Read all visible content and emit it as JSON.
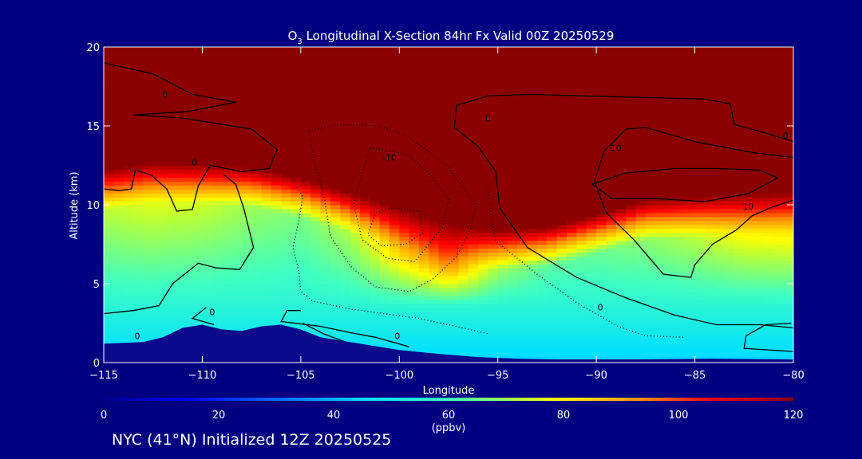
{
  "chart_data": {
    "type": "heatmap",
    "title_prefix": "O",
    "title_sub": "3",
    "title_rest": " Longitudinal X-Section 84hr  Fx Valid 00Z 20250529",
    "xlabel": "Longitude",
    "ylabel": "Altitude (km)",
    "xlim": [
      -115,
      -80
    ],
    "ylim": [
      0,
      20
    ],
    "xticks": [
      -115,
      -110,
      -105,
      -100,
      -95,
      -90,
      -85,
      -80
    ],
    "xtick_labels": [
      "−115",
      "−110",
      "−105",
      "−100",
      "−95",
      "−90",
      "−85",
      "−80"
    ],
    "yticks": [
      0,
      5,
      10,
      15,
      20
    ],
    "ytick_labels": [
      "0",
      "5",
      "10",
      "15",
      "20"
    ],
    "colorbar": {
      "min": 0,
      "max": 120,
      "ticks": [
        0,
        20,
        40,
        60,
        80,
        100,
        120
      ],
      "tick_labels": [
        "0",
        "20",
        "40",
        "60",
        "80",
        "100",
        "120"
      ],
      "unit": "(ppbv)"
    },
    "contour_labels": [
      {
        "text": "0",
        "lon": -111.9,
        "alt": 16.8
      },
      {
        "text": "0",
        "lon": -110.4,
        "alt": 12.5
      },
      {
        "text": "0",
        "lon": -95.5,
        "alt": 15.3
      },
      {
        "text": "0",
        "lon": -80.4,
        "alt": 14.2
      },
      {
        "text": "-10",
        "lon": -100.5,
        "alt": 12.8
      },
      {
        "text": "10",
        "lon": -89.0,
        "alt": 13.4
      },
      {
        "text": "10",
        "lon": -82.3,
        "alt": 9.7
      },
      {
        "text": "0",
        "lon": -109.5,
        "alt": 3.0
      },
      {
        "text": "0",
        "lon": -113.3,
        "alt": 1.5
      },
      {
        "text": "0",
        "lon": -89.8,
        "alt": 3.3
      },
      {
        "text": "0",
        "lon": -100.1,
        "alt": 1.5
      }
    ],
    "cross_section": [
      {
        "lon": -115,
        "tropopause_km": 11.7,
        "mid_ppbv": 73
      },
      {
        "lon": -112.5,
        "tropopause_km": 12.2,
        "mid_ppbv": 77
      },
      {
        "lon": -110,
        "tropopause_km": 12.1,
        "mid_ppbv": 75
      },
      {
        "lon": -107.5,
        "tropopause_km": 11.9,
        "mid_ppbv": 70
      },
      {
        "lon": -105,
        "tropopause_km": 11.2,
        "mid_ppbv": 66
      },
      {
        "lon": -102.5,
        "tropopause_km": 10.3,
        "mid_ppbv": 72
      },
      {
        "lon": -100,
        "tropopause_km": 9.3,
        "mid_ppbv": 88
      },
      {
        "lon": -97.5,
        "tropopause_km": 8.3,
        "mid_ppbv": 96
      },
      {
        "lon": -95,
        "tropopause_km": 7.9,
        "mid_ppbv": 70
      },
      {
        "lon": -92.5,
        "tropopause_km": 8.1,
        "mid_ppbv": 63
      },
      {
        "lon": -90,
        "tropopause_km": 8.9,
        "mid_ppbv": 64
      },
      {
        "lon": -87.5,
        "tropopause_km": 9.8,
        "mid_ppbv": 68
      },
      {
        "lon": -85,
        "tropopause_km": 10.0,
        "mid_ppbv": 73
      },
      {
        "lon": -82.5,
        "tropopause_km": 10.2,
        "mid_ppbv": 80
      },
      {
        "lon": -80,
        "tropopause_km": 10.3,
        "mid_ppbv": 82
      }
    ],
    "terrain": [
      {
        "lon": -115,
        "alt": 1.2
      },
      {
        "lon": -113,
        "alt": 1.3
      },
      {
        "lon": -112,
        "alt": 1.6
      },
      {
        "lon": -111,
        "alt": 2.2
      },
      {
        "lon": -110,
        "alt": 2.4
      },
      {
        "lon": -109,
        "alt": 2.1
      },
      {
        "lon": -108,
        "alt": 2.0
      },
      {
        "lon": -107,
        "alt": 2.3
      },
      {
        "lon": -106,
        "alt": 2.4
      },
      {
        "lon": -105,
        "alt": 2.1
      },
      {
        "lon": -104,
        "alt": 1.6
      },
      {
        "lon": -102,
        "alt": 1.2
      },
      {
        "lon": -100,
        "alt": 0.8
      },
      {
        "lon": -98,
        "alt": 0.55
      },
      {
        "lon": -96,
        "alt": 0.35
      },
      {
        "lon": -94,
        "alt": 0.25
      },
      {
        "lon": -92,
        "alt": 0.2
      },
      {
        "lon": -88,
        "alt": 0.2
      },
      {
        "lon": -84,
        "alt": 0.25
      },
      {
        "lon": -80,
        "alt": 0.2
      }
    ]
  },
  "footer": "NYC (41°N) Initialized 12Z 20250525",
  "colors": {
    "background": "#000080",
    "plot_frame": "#ffffff",
    "contour": "#000000",
    "terrain": "#0a0a8a",
    "stratosphere": "#840000"
  }
}
